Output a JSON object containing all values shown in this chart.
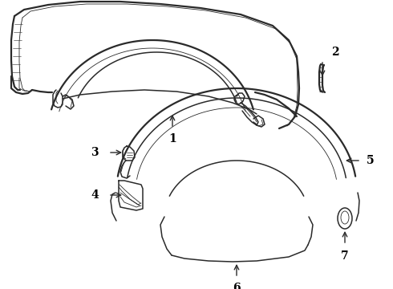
{
  "background_color": "#ffffff",
  "line_color": "#2a2a2a",
  "label_color": "#000000",
  "lw_main": 1.1,
  "lw_thin": 0.6,
  "lw_thick": 1.6
}
